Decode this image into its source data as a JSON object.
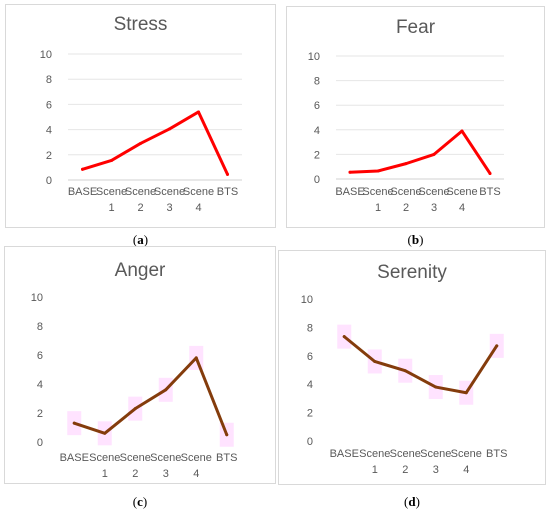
{
  "chart_data": [
    {
      "type": "line",
      "title": "Stress",
      "caption_letter": "a",
      "categories": [
        "BASE",
        "Scene 1",
        "Scene 2",
        "Scene 3",
        "Scene 4",
        "BTS"
      ],
      "category_lines": [
        [
          "BASE"
        ],
        [
          "Scene",
          "1"
        ],
        [
          "Scene",
          "2"
        ],
        [
          "Scene",
          "3"
        ],
        [
          "Scene",
          "4"
        ],
        [
          "BTS"
        ]
      ],
      "series": [
        {
          "values": [
            0.85,
            1.55,
            2.9,
            4.05,
            5.4,
            0.45
          ],
          "color": "#ff0000"
        }
      ],
      "ylim": [
        0,
        10
      ],
      "yticks": [
        0,
        2,
        4,
        6,
        8,
        10
      ],
      "grid": true,
      "error_bars": false
    },
    {
      "type": "line",
      "title": "Fear",
      "caption_letter": "b",
      "categories": [
        "BASE",
        "Scene 1",
        "Scene 2",
        "Scene 3",
        "Scene 4",
        "BTS"
      ],
      "category_lines": [
        [
          "BASE"
        ],
        [
          "Scene",
          "1"
        ],
        [
          "Scene",
          "2"
        ],
        [
          "Scene",
          "3"
        ],
        [
          "Scene",
          "4"
        ],
        [
          "BTS"
        ]
      ],
      "series": [
        {
          "values": [
            0.55,
            0.65,
            1.25,
            2.0,
            3.9,
            0.45
          ],
          "color": "#ff0000"
        }
      ],
      "ylim": [
        0,
        10
      ],
      "yticks": [
        0,
        2,
        4,
        6,
        8,
        10
      ],
      "grid": true,
      "error_bars": false
    },
    {
      "type": "line",
      "title": "Anger",
      "caption_letter": "c",
      "categories": [
        "BASE",
        "Scene 1",
        "Scene 2",
        "Scene 3",
        "Scene 4",
        "BTS"
      ],
      "category_lines": [
        [
          "BASE"
        ],
        [
          "Scene",
          "1"
        ],
        [
          "Scene",
          "2"
        ],
        [
          "Scene",
          "3"
        ],
        [
          "Scene",
          "4"
        ],
        [
          "BTS"
        ]
      ],
      "series": [
        {
          "values": [
            1.3,
            0.6,
            2.3,
            3.6,
            5.8,
            0.5
          ],
          "color": "#843c0c"
        }
      ],
      "ylim": [
        0,
        10
      ],
      "yticks": [
        0,
        2,
        4,
        6,
        8,
        10
      ],
      "grid": false,
      "error_bars": true,
      "error_color": "#ffccff"
    },
    {
      "type": "line",
      "title": "Serenity",
      "caption_letter": "d",
      "categories": [
        "BASE",
        "Scene 1",
        "Scene 2",
        "Scene 3",
        "Scene 4",
        "BTS"
      ],
      "category_lines": [
        [
          "BASE"
        ],
        [
          "Scene",
          "1"
        ],
        [
          "Scene",
          "2"
        ],
        [
          "Scene",
          "3"
        ],
        [
          "Scene",
          "4"
        ],
        [
          "BTS"
        ]
      ],
      "series": [
        {
          "values": [
            7.35,
            5.6,
            4.95,
            3.8,
            3.4,
            6.7
          ],
          "color": "#843c0c"
        }
      ],
      "ylim": [
        0,
        10
      ],
      "yticks": [
        0,
        2,
        4,
        6,
        8,
        10
      ],
      "grid": false,
      "error_bars": true,
      "error_color": "#ffccff"
    }
  ]
}
